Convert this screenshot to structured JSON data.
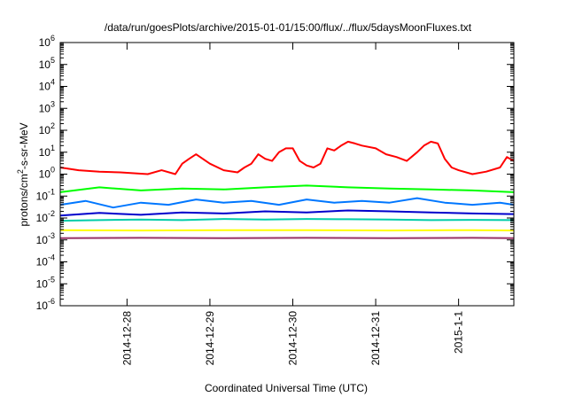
{
  "chart_data": {
    "type": "line",
    "title": "/data/run/goesPlots/archive/2015-01-01/15:00/flux/../flux/5daysMoonFluxes.txt",
    "xlabel": "Coordinated Universal Time (UTC)",
    "ylabel": {
      "prefix": "protons/cm",
      "superscript": "2",
      "suffix": "-s-sr-MeV"
    },
    "y_scale": "log",
    "ylim": [
      1e-06,
      1000000.0
    ],
    "y_ticks": [
      {
        "value": 1e-06,
        "base": "10",
        "exp": "-6"
      },
      {
        "value": 1e-05,
        "base": "10",
        "exp": "-5"
      },
      {
        "value": 0.0001,
        "base": "10",
        "exp": "-4"
      },
      {
        "value": 0.001,
        "base": "10",
        "exp": "-3"
      },
      {
        "value": 0.01,
        "base": "10",
        "exp": "-2"
      },
      {
        "value": 0.1,
        "base": "10",
        "exp": "-1"
      },
      {
        "value": 1,
        "base": "10",
        "exp": "0"
      },
      {
        "value": 10,
        "base": "10",
        "exp": "1"
      },
      {
        "value": 100,
        "base": "10",
        "exp": "2"
      },
      {
        "value": 1000,
        "base": "10",
        "exp": "3"
      },
      {
        "value": 10000,
        "base": "10",
        "exp": "4"
      },
      {
        "value": 100000,
        "base": "10",
        "exp": "5"
      },
      {
        "value": 1000000,
        "base": "10",
        "exp": "6"
      }
    ],
    "x_type": "date",
    "xlim": [
      "2014-12-27T04:40",
      "2015-01-01T16:00"
    ],
    "x_ticks": [
      {
        "value": "2014-12-28",
        "label": "2014-12-28"
      },
      {
        "value": "2014-12-29",
        "label": "2014-12-29"
      },
      {
        "value": "2014-12-30",
        "label": "2014-12-30"
      },
      {
        "value": "2014-12-31",
        "label": "2014-12-31"
      },
      {
        "value": "2015-01-01",
        "label": "2015-1-1"
      }
    ],
    "grid": false,
    "legend": "none",
    "series": [
      {
        "color": "#ff0000",
        "x": [
          "2014-12-27T04:40",
          "2014-12-27T10:00",
          "2014-12-27T16:00",
          "2014-12-27T22:00",
          "2014-12-28T02:00",
          "2014-12-28T06:00",
          "2014-12-28T10:00",
          "2014-12-28T14:00",
          "2014-12-28T16:00",
          "2014-12-28T18:00",
          "2014-12-28T20:00",
          "2014-12-29T00:00",
          "2014-12-29T04:00",
          "2014-12-29T08:00",
          "2014-12-29T10:00",
          "2014-12-29T12:00",
          "2014-12-29T14:00",
          "2014-12-29T16:00",
          "2014-12-29T18:00",
          "2014-12-29T20:00",
          "2014-12-29T22:00",
          "2014-12-30T00:00",
          "2014-12-30T02:00",
          "2014-12-30T04:00",
          "2014-12-30T06:00",
          "2014-12-30T08:00",
          "2014-12-30T10:00",
          "2014-12-30T12:00",
          "2014-12-30T14:00",
          "2014-12-30T16:00",
          "2014-12-30T18:00",
          "2014-12-30T20:00",
          "2014-12-31T00:00",
          "2014-12-31T03:00",
          "2014-12-31T06:00",
          "2014-12-31T09:00",
          "2014-12-31T12:00",
          "2014-12-31T14:00",
          "2014-12-31T16:00",
          "2014-12-31T18:00",
          "2014-12-31T20:00",
          "2014-12-31T22:00",
          "2015-01-01T00:00",
          "2015-01-01T04:00",
          "2015-01-01T08:00",
          "2015-01-01T12:00",
          "2015-01-01T14:00",
          "2015-01-01T16:00"
        ],
        "values": [
          2,
          1.5,
          1.3,
          1.2,
          1.1,
          1,
          1.5,
          1,
          3,
          5,
          8,
          3,
          1.5,
          1.2,
          2,
          3,
          8,
          5,
          4,
          10,
          15,
          15,
          4,
          2.5,
          2,
          3,
          15,
          12,
          20,
          30,
          25,
          20,
          15,
          8,
          6,
          4,
          10,
          20,
          30,
          25,
          5,
          2,
          1.5,
          1,
          1.3,
          2,
          6,
          4
        ]
      },
      {
        "color": "#00ff00",
        "x": [
          "2014-12-27T04:40",
          "2014-12-27T16:00",
          "2014-12-28T04:00",
          "2014-12-28T16:00",
          "2014-12-29T04:00",
          "2014-12-29T16:00",
          "2014-12-30T04:00",
          "2014-12-30T16:00",
          "2014-12-31T04:00",
          "2014-12-31T16:00",
          "2015-01-01T04:00",
          "2015-01-01T16:00"
        ],
        "values": [
          0.15,
          0.25,
          0.18,
          0.22,
          0.2,
          0.25,
          0.3,
          0.25,
          0.22,
          0.2,
          0.18,
          0.15
        ]
      },
      {
        "color": "#0077ff",
        "x": [
          "2014-12-27T04:40",
          "2014-12-27T12:00",
          "2014-12-27T20:00",
          "2014-12-28T04:00",
          "2014-12-28T12:00",
          "2014-12-28T20:00",
          "2014-12-29T04:00",
          "2014-12-29T12:00",
          "2014-12-29T20:00",
          "2014-12-30T04:00",
          "2014-12-30T12:00",
          "2014-12-30T20:00",
          "2014-12-31T04:00",
          "2014-12-31T12:00",
          "2014-12-31T20:00",
          "2015-01-01T04:00",
          "2015-01-01T12:00",
          "2015-01-01T16:00"
        ],
        "values": [
          0.04,
          0.06,
          0.03,
          0.05,
          0.04,
          0.07,
          0.05,
          0.06,
          0.04,
          0.07,
          0.05,
          0.06,
          0.05,
          0.08,
          0.05,
          0.04,
          0.05,
          0.04
        ]
      },
      {
        "color": "#0000cc",
        "x": [
          "2014-12-27T04:40",
          "2014-12-27T16:00",
          "2014-12-28T04:00",
          "2014-12-28T16:00",
          "2014-12-29T04:00",
          "2014-12-29T16:00",
          "2014-12-30T04:00",
          "2014-12-30T16:00",
          "2014-12-31T04:00",
          "2014-12-31T16:00",
          "2015-01-01T04:00",
          "2015-01-01T16:00"
        ],
        "values": [
          0.013,
          0.017,
          0.014,
          0.018,
          0.016,
          0.02,
          0.018,
          0.022,
          0.02,
          0.018,
          0.016,
          0.015
        ]
      },
      {
        "color": "#00ccaa",
        "x": [
          "2014-12-27T04:40",
          "2014-12-27T16:00",
          "2014-12-28T04:00",
          "2014-12-28T16:00",
          "2014-12-29T04:00",
          "2014-12-29T16:00",
          "2014-12-30T04:00",
          "2014-12-30T16:00",
          "2014-12-31T04:00",
          "2014-12-31T16:00",
          "2015-01-01T04:00",
          "2015-01-01T16:00"
        ],
        "values": [
          0.0075,
          0.008,
          0.0085,
          0.008,
          0.009,
          0.0085,
          0.009,
          0.0088,
          0.0085,
          0.008,
          0.0082,
          0.008
        ]
      },
      {
        "color": "#ffff00",
        "x": [
          "2014-12-27T04:40",
          "2014-12-28T04:00",
          "2014-12-29T04:00",
          "2014-12-30T04:00",
          "2014-12-31T04:00",
          "2015-01-01T04:00",
          "2015-01-01T16:00"
        ],
        "values": [
          0.0028,
          0.0027,
          0.0028,
          0.0028,
          0.0027,
          0.0028,
          0.0027
        ]
      },
      {
        "color": "#993366",
        "x": [
          "2014-12-27T04:40",
          "2014-12-28T04:00",
          "2014-12-29T04:00",
          "2014-12-30T04:00",
          "2014-12-31T04:00",
          "2015-01-01T04:00",
          "2015-01-01T16:00"
        ],
        "values": [
          0.0012,
          0.00125,
          0.0012,
          0.00125,
          0.0012,
          0.00125,
          0.0012
        ]
      }
    ]
  }
}
